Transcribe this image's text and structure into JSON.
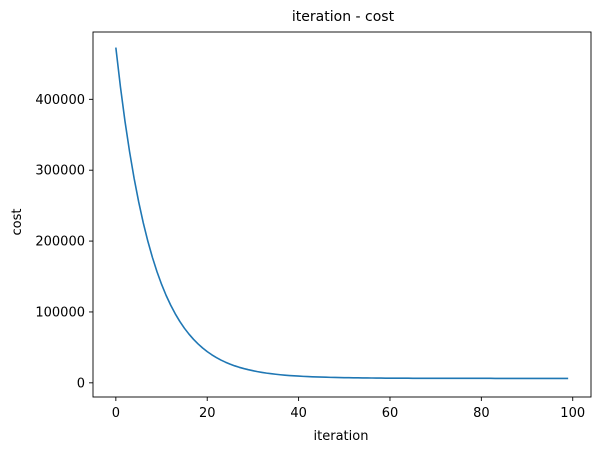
{
  "chart_data": {
    "type": "line",
    "title": "iteration - cost",
    "xlabel": "iteration",
    "ylabel": "cost",
    "xlim": [
      -5,
      104
    ],
    "ylim": [
      -20000,
      495000
    ],
    "xticks": [
      0,
      20,
      40,
      60,
      80,
      100
    ],
    "yticks": [
      0,
      100000,
      200000,
      300000,
      400000
    ],
    "xtick_labels": [
      "0",
      "20",
      "40",
      "60",
      "80",
      "100"
    ],
    "ytick_labels": [
      "0",
      "100000",
      "200000",
      "300000",
      "400000"
    ],
    "grid": false,
    "series": [
      {
        "color": "#1f77b4",
        "x": [
          0,
          1,
          2,
          3,
          4,
          5,
          6,
          7,
          8,
          9,
          10,
          11,
          12,
          13,
          14,
          15,
          16,
          17,
          18,
          19,
          20,
          21,
          22,
          23,
          24,
          25,
          26,
          27,
          28,
          29,
          30,
          31,
          32,
          33,
          34,
          35,
          36,
          37,
          38,
          39,
          40,
          41,
          42,
          43,
          44,
          45,
          46,
          47,
          48,
          49,
          50,
          51,
          52,
          53,
          54,
          55,
          56,
          57,
          58,
          59,
          60,
          61,
          62,
          63,
          64,
          65,
          66,
          67,
          68,
          69,
          70,
          71,
          72,
          73,
          74,
          75,
          76,
          77,
          78,
          79,
          80,
          81,
          82,
          83,
          84,
          85,
          86,
          87,
          88,
          89,
          90,
          91,
          92,
          93,
          94,
          95,
          96,
          97,
          98,
          99
        ],
        "y": [
          473000,
          417800,
          369100,
          326300,
          288500,
          255200,
          225800,
          199900,
          177100,
          156900,
          139100,
          123400,
          109600,
          97400,
          86600,
          77100,
          68800,
          61400,
          54900,
          49100,
          44000,
          39600,
          35600,
          32100,
          29100,
          26400,
          24000,
          21900,
          20100,
          18500,
          17100,
          15800,
          14700,
          13700,
          12900,
          12100,
          11400,
          10800,
          10300,
          9900,
          9500,
          9100,
          8800,
          8500,
          8300,
          8100,
          7900,
          7700,
          7600,
          7400,
          7300,
          7200,
          7100,
          7000,
          6900,
          6900,
          6800,
          6700,
          6700,
          6600,
          6600,
          6600,
          6500,
          6500,
          6500,
          6400,
          6400,
          6400,
          6400,
          6400,
          6300,
          6300,
          6300,
          6300,
          6300,
          6300,
          6300,
          6300,
          6300,
          6300,
          6300,
          6300,
          6300,
          6200,
          6200,
          6200,
          6200,
          6200,
          6200,
          6200,
          6200,
          6200,
          6200,
          6200,
          6200,
          6200,
          6200,
          6200,
          6200,
          6200
        ]
      }
    ]
  }
}
